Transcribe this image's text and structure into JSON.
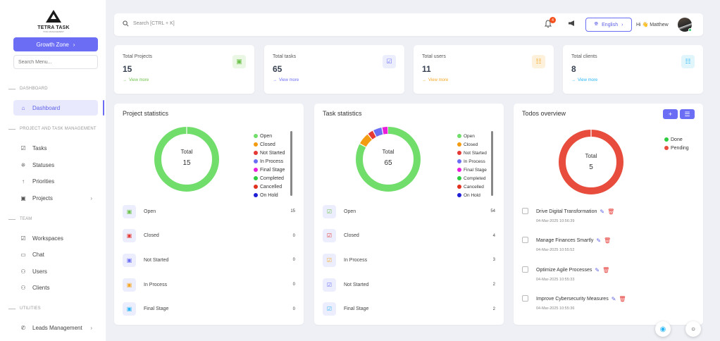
{
  "logo": {
    "title": "TETRA TASK",
    "subtitle": "TASK MANAGEMENT"
  },
  "sidebar": {
    "growth_label": "Growth Zone",
    "search_placeholder": "Search Menu...",
    "sections": [
      {
        "label": "DASHBOARD"
      },
      {
        "label": "PROJECT AND TASK MANAGEMENT"
      },
      {
        "label": "TEAM"
      },
      {
        "label": "UTILITIES"
      }
    ],
    "items": [
      {
        "label": "Dashboard",
        "icon": "home-icon"
      },
      {
        "label": "Tasks",
        "icon": "checkbox-icon"
      },
      {
        "label": "Statuses",
        "icon": "grid-icon"
      },
      {
        "label": "Priorities",
        "icon": "arrow-up-icon"
      },
      {
        "label": "Projects",
        "icon": "briefcase-icon"
      },
      {
        "label": "Workspaces",
        "icon": "checkbox-icon"
      },
      {
        "label": "Chat",
        "icon": "chat-icon"
      },
      {
        "label": "Users",
        "icon": "users-icon"
      },
      {
        "label": "Clients",
        "icon": "users-icon"
      },
      {
        "label": "Leads Management",
        "icon": "phone-icon"
      }
    ]
  },
  "header": {
    "search_placeholder": "Search [CTRL + K]",
    "notification_count": "4",
    "language": "English",
    "greeting": "Hi 👋 Matthew"
  },
  "stats": [
    {
      "label": "Total Projects",
      "value": "15",
      "link": "View more",
      "color": "#6cc24a",
      "bg": "#eaf7e4",
      "icon": "briefcase-icon"
    },
    {
      "label": "Total tasks",
      "value": "65",
      "link": "View more",
      "color": "#6b6ef5",
      "bg": "#eceefe",
      "icon": "clipboard-check-icon"
    },
    {
      "label": "Total users",
      "value": "11",
      "link": "View more",
      "color": "#f5a623",
      "bg": "#fdf1dc",
      "icon": "user-card-icon"
    },
    {
      "label": "Total clients",
      "value": "8",
      "link": "View more",
      "color": "#29b6f6",
      "bg": "#e1f5fd",
      "icon": "user-card-icon"
    }
  ],
  "project_stats": {
    "title": "Project statistics",
    "total_label": "Total",
    "total": "15",
    "legend": [
      {
        "label": "Open",
        "color": "#71dd6b"
      },
      {
        "label": "Closed",
        "color": "#f39c12"
      },
      {
        "label": "Not Started",
        "color": "#e53935"
      },
      {
        "label": "In Process",
        "color": "#6b6ef5"
      },
      {
        "label": "Final Stage",
        "color": "#e91ed8"
      },
      {
        "label": "Completed",
        "color": "#2ecc40"
      },
      {
        "label": "Cancelled",
        "color": "#e0301e"
      },
      {
        "label": "On Hold",
        "color": "#1f1fd6"
      }
    ],
    "rows": [
      {
        "label": "Open",
        "count": "15",
        "color": "#6cc24a"
      },
      {
        "label": "Closed",
        "count": "0",
        "color": "#e53935"
      },
      {
        "label": "Not Started",
        "count": "0",
        "color": "#6b6ef5"
      },
      {
        "label": "In Process",
        "count": "0",
        "color": "#f5a623"
      },
      {
        "label": "Final Stage",
        "count": "0",
        "color": "#29b6f6"
      }
    ]
  },
  "task_stats": {
    "title": "Task statistics",
    "total_label": "Total",
    "total": "65",
    "legend": [
      {
        "label": "Open",
        "color": "#71dd6b"
      },
      {
        "label": "Closed",
        "color": "#f39c12"
      },
      {
        "label": "Not Started",
        "color": "#e53935"
      },
      {
        "label": "In Process",
        "color": "#6b6ef5"
      },
      {
        "label": "Final Stage",
        "color": "#e91ed8"
      },
      {
        "label": "Completed",
        "color": "#2ecc40"
      },
      {
        "label": "Cancelled",
        "color": "#e0301e"
      },
      {
        "label": "On Hold",
        "color": "#1f1fd6"
      }
    ],
    "rows": [
      {
        "label": "Open",
        "count": "54",
        "color": "#6cc24a"
      },
      {
        "label": "Closed",
        "count": "4",
        "color": "#e53935"
      },
      {
        "label": "In Process",
        "count": "3",
        "color": "#f5a623"
      },
      {
        "label": "Not Started",
        "count": "2",
        "color": "#6b6ef5"
      },
      {
        "label": "Final Stage",
        "count": "2",
        "color": "#29b6f6"
      }
    ]
  },
  "todos": {
    "title": "Todos overview",
    "total_label": "Total",
    "total": "5",
    "legend": [
      {
        "label": "Done",
        "color": "#2ecc40"
      },
      {
        "label": "Pending",
        "color": "#e74c3c"
      }
    ],
    "items": [
      {
        "title": "Drive Digital Transformation",
        "date": "04-Mar-2025 10:56:39"
      },
      {
        "title": "Manage Finances Smartly",
        "date": "04-Mar-2025 10:55:52"
      },
      {
        "title": "Optimize Agile Processes",
        "date": "04-Mar-2025 10:55:33"
      },
      {
        "title": "Improve Cybersecurity Measures",
        "date": "04-Mar-2025 10:55:36"
      }
    ]
  },
  "chart_data": [
    {
      "type": "pie",
      "categories": [
        "Open",
        "Closed",
        "Not Started",
        "In Process",
        "Final Stage",
        "Completed",
        "Cancelled",
        "On Hold"
      ],
      "values": [
        15,
        0,
        0,
        0,
        0,
        0,
        0,
        0
      ],
      "title": "Project statistics"
    },
    {
      "type": "pie",
      "categories": [
        "Open",
        "Closed",
        "Not Started",
        "In Process",
        "Final Stage",
        "Completed",
        "Cancelled",
        "On Hold"
      ],
      "values": [
        54,
        4,
        2,
        3,
        2,
        0,
        0,
        0
      ],
      "title": "Task statistics"
    },
    {
      "type": "pie",
      "categories": [
        "Done",
        "Pending"
      ],
      "values": [
        0,
        5
      ],
      "title": "Todos overview"
    }
  ]
}
